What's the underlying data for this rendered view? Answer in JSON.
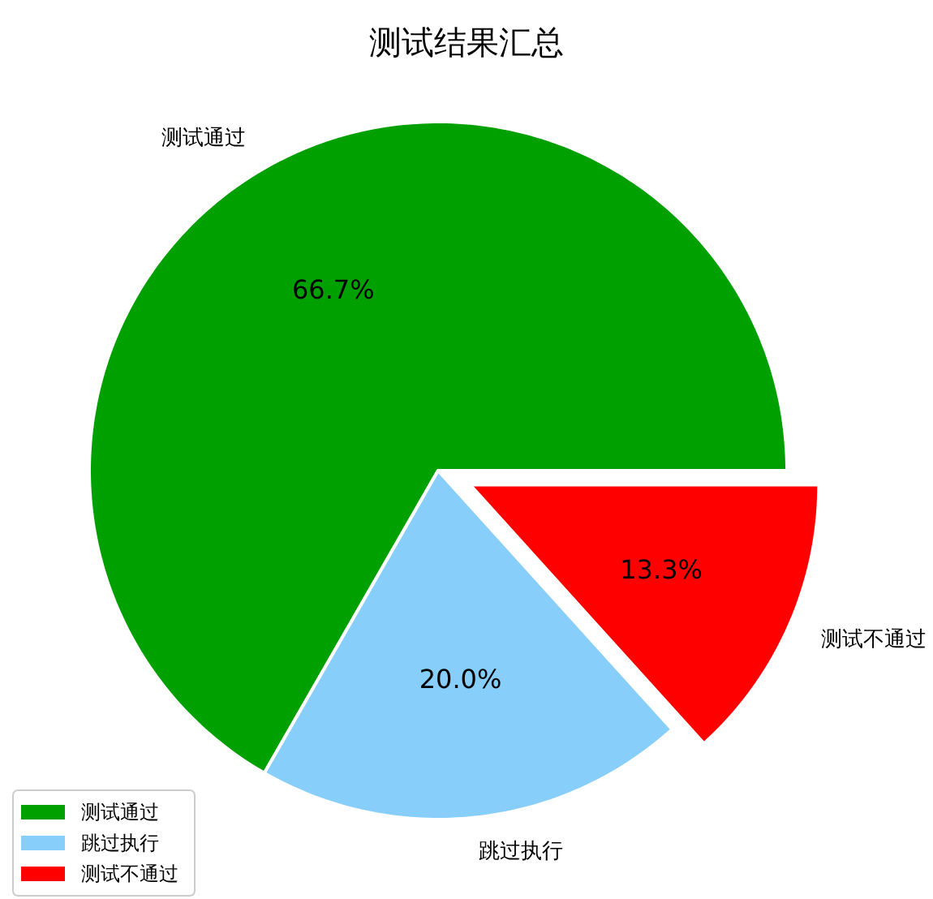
{
  "chart_data": {
    "type": "pie",
    "title": "测试结果汇总",
    "categories": [
      "测试通过",
      "跳过执行",
      "测试不通过"
    ],
    "values": [
      66.7,
      20.0,
      13.3
    ],
    "colors": [
      "#00a000",
      "#87cefa",
      "#ff0000"
    ],
    "value_labels": [
      "66.7%",
      "20.0%",
      "13.3%"
    ],
    "legend": "bottom left"
  }
}
